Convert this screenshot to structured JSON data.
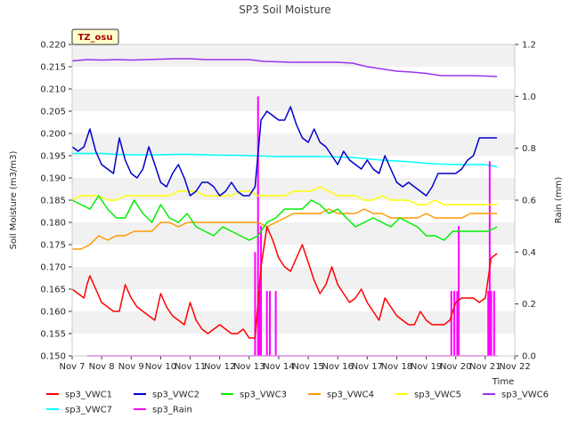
{
  "chart_data": {
    "type": "line",
    "title": "SP3 Soil Moisture",
    "xlabel": "Time",
    "ylabel": "Soil Moisture (m3/m3)",
    "y2label": "Rain (mm)",
    "station_label": "TZ_osu",
    "xlim": [
      7,
      22
    ],
    "ylim": [
      0.15,
      0.22
    ],
    "y2lim": [
      0.0,
      1.2
    ],
    "x_ticks": [
      7,
      8,
      9,
      10,
      11,
      12,
      13,
      14,
      15,
      16,
      17,
      18,
      19,
      20,
      21,
      22
    ],
    "x_tick_labels": [
      "Nov 7",
      "Nov 8",
      "Nov 9",
      "Nov 10",
      "Nov 11",
      "Nov 12",
      "Nov 13",
      "Nov 14",
      "Nov 15",
      "Nov 16",
      "Nov 17",
      "Nov 18",
      "Nov 19",
      "Nov 20",
      "Nov 21",
      "Nov 22"
    ],
    "y_ticks": [
      0.15,
      0.155,
      0.16,
      0.165,
      0.17,
      0.175,
      0.18,
      0.185,
      0.19,
      0.195,
      0.2,
      0.205,
      0.21,
      0.215,
      0.22
    ],
    "y_tick_labels": [
      "0.150",
      "0.155",
      "0.160",
      "0.165",
      "0.170",
      "0.175",
      "0.180",
      "0.185",
      "0.190",
      "0.195",
      "0.200",
      "0.205",
      "0.210",
      "0.215",
      "0.220"
    ],
    "y2_ticks": [
      0.0,
      0.2,
      0.4,
      0.6,
      0.8,
      1.0,
      1.2
    ],
    "y2_tick_labels": [
      "0.0",
      "0.2",
      "0.4",
      "0.6",
      "0.8",
      "1.0",
      "1.2"
    ],
    "grid": "horizontal bands",
    "legend_placement": "bottom",
    "series": [
      {
        "name": "sp3_VWC1",
        "color": "#ff0000",
        "axis": "left",
        "x": [
          7.0,
          7.2,
          7.4,
          7.5,
          7.6,
          7.8,
          8.0,
          8.2,
          8.4,
          8.6,
          8.8,
          9.0,
          9.2,
          9.4,
          9.6,
          9.8,
          10.0,
          10.2,
          10.4,
          10.6,
          10.8,
          11.0,
          11.2,
          11.4,
          11.6,
          11.8,
          12.0,
          12.2,
          12.4,
          12.6,
          12.8,
          13.0,
          13.2,
          13.4,
          13.6,
          13.8,
          14.0,
          14.2,
          14.4,
          14.6,
          14.8,
          15.0,
          15.2,
          15.4,
          15.6,
          15.8,
          16.0,
          16.2,
          16.4,
          16.6,
          16.8,
          17.0,
          17.2,
          17.4,
          17.6,
          17.8,
          18.0,
          18.2,
          18.4,
          18.6,
          18.8,
          19.0,
          19.2,
          19.4,
          19.6,
          19.8,
          20.0,
          20.2,
          20.4,
          20.6,
          20.8,
          21.0,
          21.2,
          21.4
        ],
        "y": [
          0.165,
          0.164,
          0.163,
          0.166,
          0.168,
          0.165,
          0.162,
          0.161,
          0.16,
          0.16,
          0.166,
          0.163,
          0.161,
          0.16,
          0.159,
          0.158,
          0.164,
          0.161,
          0.159,
          0.158,
          0.157,
          0.162,
          0.158,
          0.156,
          0.155,
          0.156,
          0.157,
          0.156,
          0.155,
          0.155,
          0.156,
          0.154,
          0.154,
          0.17,
          0.179,
          0.176,
          0.172,
          0.17,
          0.169,
          0.172,
          0.175,
          0.171,
          0.167,
          0.164,
          0.166,
          0.17,
          0.166,
          0.164,
          0.162,
          0.163,
          0.165,
          0.162,
          0.16,
          0.158,
          0.163,
          0.161,
          0.159,
          0.158,
          0.157,
          0.157,
          0.16,
          0.158,
          0.157,
          0.157,
          0.157,
          0.158,
          0.162,
          0.163,
          0.163,
          0.163,
          0.162,
          0.163,
          0.172,
          0.173
        ]
      },
      {
        "name": "sp3_VWC2",
        "color": "#0000cc",
        "axis": "left",
        "x": [
          7.0,
          7.2,
          7.4,
          7.6,
          7.8,
          8.0,
          8.2,
          8.4,
          8.6,
          8.8,
          9.0,
          9.2,
          9.4,
          9.6,
          9.8,
          10.0,
          10.2,
          10.4,
          10.6,
          10.8,
          11.0,
          11.2,
          11.4,
          11.6,
          11.8,
          12.0,
          12.2,
          12.4,
          12.6,
          12.8,
          13.0,
          13.2,
          13.4,
          13.6,
          13.8,
          14.0,
          14.2,
          14.4,
          14.6,
          14.8,
          15.0,
          15.2,
          15.4,
          15.6,
          15.8,
          16.0,
          16.2,
          16.4,
          16.6,
          16.8,
          17.0,
          17.2,
          17.4,
          17.6,
          17.8,
          18.0,
          18.2,
          18.4,
          18.6,
          18.8,
          19.0,
          19.2,
          19.4,
          19.6,
          19.8,
          20.0,
          20.2,
          20.4,
          20.6,
          20.8,
          21.0,
          21.2,
          21.4
        ],
        "y": [
          0.197,
          0.196,
          0.197,
          0.201,
          0.196,
          0.193,
          0.192,
          0.191,
          0.199,
          0.194,
          0.191,
          0.19,
          0.192,
          0.197,
          0.193,
          0.189,
          0.188,
          0.191,
          0.193,
          0.19,
          0.186,
          0.187,
          0.189,
          0.189,
          0.188,
          0.186,
          0.187,
          0.189,
          0.187,
          0.186,
          0.186,
          0.188,
          0.203,
          0.205,
          0.204,
          0.203,
          0.203,
          0.206,
          0.202,
          0.199,
          0.198,
          0.201,
          0.198,
          0.197,
          0.195,
          0.193,
          0.196,
          0.194,
          0.193,
          0.192,
          0.194,
          0.192,
          0.191,
          0.195,
          0.192,
          0.189,
          0.188,
          0.189,
          0.188,
          0.187,
          0.186,
          0.188,
          0.191,
          0.191,
          0.191,
          0.191,
          0.192,
          0.194,
          0.195,
          0.199,
          0.199,
          0.199,
          0.199
        ]
      },
      {
        "name": "sp3_VWC3",
        "color": "#00ee00",
        "axis": "left",
        "x": [
          7.0,
          7.3,
          7.6,
          7.9,
          8.2,
          8.5,
          8.8,
          9.1,
          9.4,
          9.7,
          10.0,
          10.3,
          10.6,
          10.9,
          11.2,
          11.5,
          11.8,
          12.1,
          12.4,
          12.7,
          13.0,
          13.3,
          13.6,
          13.9,
          14.2,
          14.5,
          14.8,
          15.1,
          15.4,
          15.7,
          16.0,
          16.3,
          16.6,
          16.9,
          17.2,
          17.5,
          17.8,
          18.1,
          18.4,
          18.7,
          19.0,
          19.3,
          19.6,
          19.9,
          20.2,
          20.5,
          20.8,
          21.1,
          21.4
        ],
        "y": [
          0.185,
          0.184,
          0.183,
          0.186,
          0.183,
          0.181,
          0.181,
          0.185,
          0.182,
          0.18,
          0.184,
          0.181,
          0.18,
          0.182,
          0.179,
          0.178,
          0.177,
          0.179,
          0.178,
          0.177,
          0.176,
          0.177,
          0.18,
          0.181,
          0.183,
          0.183,
          0.183,
          0.185,
          0.184,
          0.182,
          0.183,
          0.181,
          0.179,
          0.18,
          0.181,
          0.18,
          0.179,
          0.181,
          0.18,
          0.179,
          0.177,
          0.177,
          0.176,
          0.178,
          0.178,
          0.178,
          0.178,
          0.178,
          0.179
        ]
      },
      {
        "name": "sp3_VWC4",
        "color": "#ff9900",
        "axis": "left",
        "x": [
          7.0,
          7.3,
          7.6,
          7.9,
          8.2,
          8.5,
          8.8,
          9.1,
          9.4,
          9.7,
          10.0,
          10.3,
          10.6,
          10.9,
          11.2,
          11.5,
          11.8,
          12.1,
          12.4,
          12.7,
          13.0,
          13.3,
          13.6,
          13.9,
          14.2,
          14.5,
          14.8,
          15.1,
          15.4,
          15.7,
          16.0,
          16.3,
          16.6,
          16.9,
          17.2,
          17.5,
          17.8,
          18.1,
          18.4,
          18.7,
          19.0,
          19.3,
          19.6,
          19.9,
          20.2,
          20.5,
          20.8,
          21.1,
          21.4
        ],
        "y": [
          0.174,
          0.174,
          0.175,
          0.177,
          0.176,
          0.177,
          0.177,
          0.178,
          0.178,
          0.178,
          0.18,
          0.18,
          0.179,
          0.18,
          0.18,
          0.18,
          0.18,
          0.18,
          0.18,
          0.18,
          0.18,
          0.18,
          0.179,
          0.18,
          0.181,
          0.182,
          0.182,
          0.182,
          0.182,
          0.183,
          0.182,
          0.182,
          0.182,
          0.183,
          0.182,
          0.182,
          0.181,
          0.181,
          0.181,
          0.181,
          0.182,
          0.181,
          0.181,
          0.181,
          0.181,
          0.182,
          0.182,
          0.182,
          0.182
        ]
      },
      {
        "name": "sp3_VWC5",
        "color": "#ffff00",
        "axis": "left",
        "x": [
          7.0,
          7.3,
          7.6,
          7.9,
          8.2,
          8.5,
          8.8,
          9.1,
          9.4,
          9.7,
          10.0,
          10.3,
          10.6,
          10.9,
          11.2,
          11.5,
          11.8,
          12.1,
          12.4,
          12.7,
          13.0,
          13.3,
          13.6,
          13.9,
          14.2,
          14.5,
          14.8,
          15.1,
          15.4,
          15.7,
          16.0,
          16.3,
          16.6,
          16.9,
          17.2,
          17.5,
          17.8,
          18.1,
          18.4,
          18.7,
          19.0,
          19.3,
          19.6,
          19.9,
          20.2,
          20.5,
          20.8,
          21.1,
          21.4
        ],
        "y": [
          0.185,
          0.186,
          0.186,
          0.186,
          0.185,
          0.185,
          0.186,
          0.186,
          0.186,
          0.186,
          0.186,
          0.186,
          0.187,
          0.187,
          0.187,
          0.186,
          0.186,
          0.186,
          0.186,
          0.187,
          0.187,
          0.186,
          0.186,
          0.186,
          0.186,
          0.187,
          0.187,
          0.187,
          0.188,
          0.187,
          0.186,
          0.186,
          0.186,
          0.185,
          0.185,
          0.186,
          0.185,
          0.185,
          0.185,
          0.184,
          0.184,
          0.185,
          0.184,
          0.184,
          0.184,
          0.184,
          0.184,
          0.184,
          0.184
        ]
      },
      {
        "name": "sp3_VWC6",
        "color": "#9933ee",
        "axis": "left",
        "x": [
          7.0,
          7.5,
          8.0,
          8.5,
          9.0,
          9.5,
          10.0,
          10.5,
          11.0,
          11.5,
          12.0,
          12.5,
          13.0,
          13.5,
          14.0,
          14.5,
          15.0,
          15.5,
          16.0,
          16.5,
          17.0,
          17.5,
          18.0,
          18.5,
          19.0,
          19.5,
          20.0,
          20.5,
          21.0,
          21.4
        ],
        "y": [
          0.2163,
          0.2166,
          0.2165,
          0.2166,
          0.2165,
          0.2166,
          0.2167,
          0.2168,
          0.2168,
          0.2166,
          0.2166,
          0.2166,
          0.2166,
          0.2162,
          0.2161,
          0.216,
          0.216,
          0.216,
          0.216,
          0.2158,
          0.215,
          0.2145,
          0.214,
          0.2138,
          0.2135,
          0.213,
          0.213,
          0.213,
          0.2129,
          0.2128
        ]
      },
      {
        "name": "sp3_VWC7",
        "color": "#00ffff",
        "axis": "left",
        "x": [
          7.0,
          7.5,
          8.0,
          8.5,
          9.0,
          9.5,
          10.0,
          10.5,
          11.0,
          11.5,
          12.0,
          12.5,
          13.0,
          13.5,
          14.0,
          14.5,
          15.0,
          15.5,
          16.0,
          16.5,
          17.0,
          17.5,
          18.0,
          18.5,
          19.0,
          19.5,
          20.0,
          20.5,
          21.0,
          21.4
        ],
        "y": [
          0.1955,
          0.1955,
          0.1955,
          0.1953,
          0.1952,
          0.1952,
          0.1952,
          0.1953,
          0.1953,
          0.1952,
          0.1951,
          0.1951,
          0.195,
          0.1949,
          0.1948,
          0.1948,
          0.1948,
          0.1948,
          0.1947,
          0.1946,
          0.1943,
          0.194,
          0.1938,
          0.1936,
          0.1933,
          0.1931,
          0.193,
          0.193,
          0.193,
          0.1925
        ]
      },
      {
        "name": "sp3_Rain",
        "color": "#ff00ff",
        "axis": "right",
        "kind": "spikes",
        "x": [
          13.2,
          13.3,
          13.35,
          13.4,
          13.6,
          13.7,
          13.9,
          19.85,
          19.95,
          20.05,
          20.1,
          21.1,
          21.15,
          21.2,
          21.3
        ],
        "y": [
          0.4,
          1.0,
          0.25,
          0.5,
          0.25,
          0.25,
          0.25,
          0.25,
          0.25,
          0.25,
          0.5,
          0.25,
          0.75,
          0.25,
          0.25
        ]
      }
    ]
  }
}
